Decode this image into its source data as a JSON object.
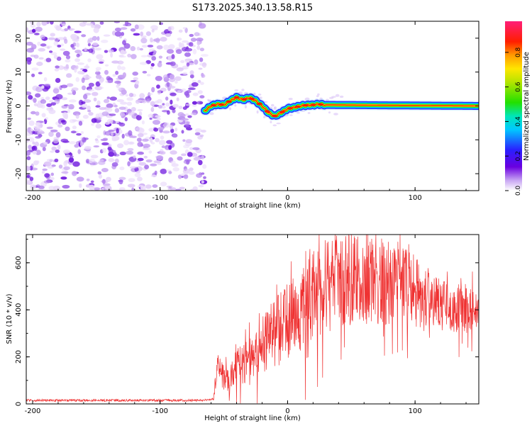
{
  "title": "S173.2025.340.13.58.R15",
  "chart_data": [
    {
      "type": "heatmap",
      "xlabel": "Height of straight line (km)",
      "ylabel": "Frequency (Hz)",
      "xlim": [
        -205,
        150
      ],
      "ylim": [
        -25,
        25
      ],
      "xticks": [
        -200,
        -100,
        0,
        100
      ],
      "yticks": [
        -20,
        -10,
        0,
        10,
        20
      ],
      "noise_region_x": [
        -205,
        -65
      ],
      "ridge": {
        "x": [
          -65,
          -60,
          -55,
          -50,
          -45,
          -40,
          -35,
          -30,
          -25,
          -20,
          -15,
          -10,
          -5,
          0,
          5,
          10,
          15,
          20,
          25,
          30,
          150
        ],
        "freq": [
          -1.5,
          0.0,
          0.5,
          0.3,
          1.5,
          2.5,
          1.8,
          2.5,
          1.5,
          0.0,
          -2.0,
          -3.0,
          -2.0,
          -0.8,
          -0.5,
          0.0,
          0.2,
          0.3,
          0.5,
          0.3,
          0.0
        ]
      },
      "colorbar": {
        "label": "Normalized spectral amplitude",
        "ticks": [
          "0.0",
          "0.2",
          "0.4",
          "0.6",
          "0.8"
        ],
        "tick_values": [
          0.0,
          0.2,
          0.4,
          0.6,
          0.8
        ],
        "range": [
          0,
          0.98
        ]
      }
    },
    {
      "type": "line",
      "xlabel": "Height of straight line (km)",
      "ylabel": "SNR (10 * v/v)",
      "xlim": [
        -205,
        150
      ],
      "ylim": [
        0,
        720
      ],
      "xticks": [
        -200,
        -100,
        0,
        100
      ],
      "yticks": [
        0,
        200,
        400,
        600
      ],
      "color": "#ef3131",
      "envelope": {
        "x": [
          -205,
          -150,
          -100,
          -70,
          -58,
          -56,
          -50,
          -40,
          -30,
          -20,
          -10,
          0,
          10,
          20,
          30,
          40,
          50,
          60,
          70,
          80,
          90,
          100,
          105,
          110,
          120,
          130,
          140,
          145,
          150
        ],
        "mean": [
          15,
          15,
          15,
          15,
          20,
          150,
          110,
          150,
          200,
          250,
          300,
          350,
          400,
          460,
          500,
          520,
          530,
          530,
          520,
          520,
          530,
          500,
          400,
          450,
          420,
          400,
          400,
          420,
          390
        ],
        "spread": [
          5,
          5,
          5,
          5,
          5,
          70,
          60,
          80,
          100,
          120,
          150,
          170,
          180,
          200,
          200,
          200,
          200,
          190,
          190,
          180,
          170,
          160,
          120,
          120,
          110,
          100,
          100,
          100,
          60
        ]
      }
    }
  ]
}
